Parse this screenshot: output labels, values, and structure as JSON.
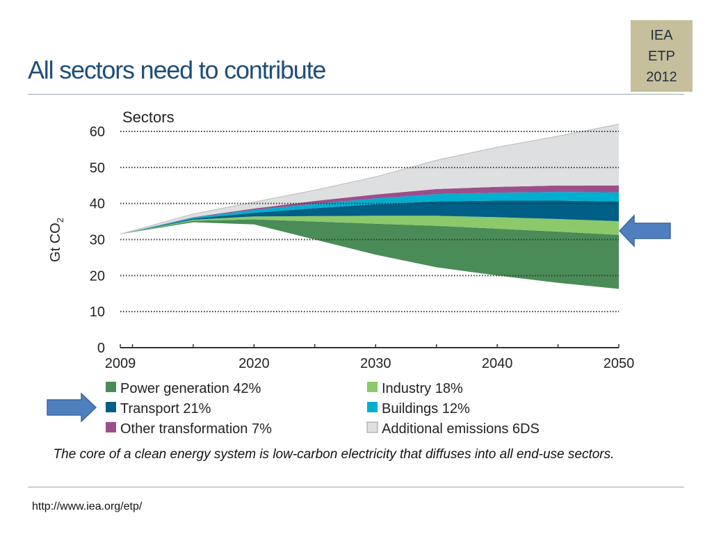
{
  "slide": {
    "title": "All sectors need to contribute",
    "badge": [
      "IEA",
      "ETP",
      "2012"
    ],
    "caption": "The core of a clean energy system is low-carbon electricity that diffuses into all end-use sectors.",
    "footer_url": "http://www.iea.org/etp/"
  },
  "chart_data": {
    "type": "area",
    "title": "Sectors",
    "ylabel": "Gt CO2",
    "ylabel_main": "Gt CO",
    "ylabel_sub": "2",
    "ylim": [
      0,
      60
    ],
    "yticks": [
      0,
      10,
      20,
      30,
      40,
      50,
      60
    ],
    "xlim": [
      2009,
      2050
    ],
    "xticks": [
      2009,
      2020,
      2030,
      2040,
      2050
    ],
    "x": [
      2009,
      2015,
      2020,
      2025,
      2030,
      2035,
      2040,
      2045,
      2050
    ],
    "baseline_2DS": [
      31.5,
      34.8,
      34.2,
      30.0,
      25.8,
      22.3,
      20.0,
      18.0,
      16.3
    ],
    "series": [
      {
        "name": "Power generation",
        "share": "42%",
        "color": "#4a8c57",
        "values": [
          0,
          0.4,
          1.4,
          5.0,
          8.6,
          11.5,
          13.0,
          14.2,
          15.0
        ]
      },
      {
        "name": "Industry",
        "share": "18%",
        "color": "#8cc96b",
        "values": [
          0,
          0.3,
          0.8,
          1.5,
          2.2,
          2.8,
          3.2,
          3.5,
          3.8
        ]
      },
      {
        "name": "Transport",
        "share": "21%",
        "color": "#005f86",
        "values": [
          0,
          0.3,
          1.0,
          2.2,
          3.2,
          4.0,
          4.6,
          5.1,
          5.5
        ]
      },
      {
        "name": "Buildings",
        "share": "12%",
        "color": "#00afd0",
        "values": [
          0,
          0.3,
          0.8,
          1.2,
          1.6,
          2.0,
          2.2,
          2.4,
          2.5
        ]
      },
      {
        "name": "Other transformation",
        "share": "7%",
        "color": "#9b4f8a",
        "values": [
          0,
          0.1,
          0.4,
          0.8,
          1.1,
          1.4,
          1.6,
          1.8,
          1.9
        ]
      },
      {
        "name": "Additional emissions 6DS",
        "share": "",
        "color": "#dedfe0",
        "values": [
          0,
          0.9,
          1.8,
          3.0,
          4.9,
          8.0,
          11.0,
          13.7,
          17.0
        ]
      }
    ],
    "legend": [
      {
        "name": "Power generation",
        "share": "42%",
        "color": "#4a8c57"
      },
      {
        "name": "Industry",
        "share": "18%",
        "color": "#8cc96b"
      },
      {
        "name": "Transport",
        "share": "21%",
        "color": "#005f86"
      },
      {
        "name": "Buildings",
        "share": "12%",
        "color": "#00afd0"
      },
      {
        "name": "Other transformation",
        "share": "7%",
        "color": "#9b4f8a"
      },
      {
        "name": "Additional emissions 6DS",
        "share": "",
        "color": "#dedfe0"
      }
    ],
    "grid": "dotted horizontal",
    "legend_position": "bottom",
    "annotations": [
      {
        "type": "arrow",
        "direction": "left",
        "points_to": "Transport band at 2050",
        "color": "#4f7fbf"
      },
      {
        "type": "arrow",
        "direction": "right",
        "points_to": "Transport legend entry",
        "color": "#4f7fbf"
      }
    ]
  }
}
